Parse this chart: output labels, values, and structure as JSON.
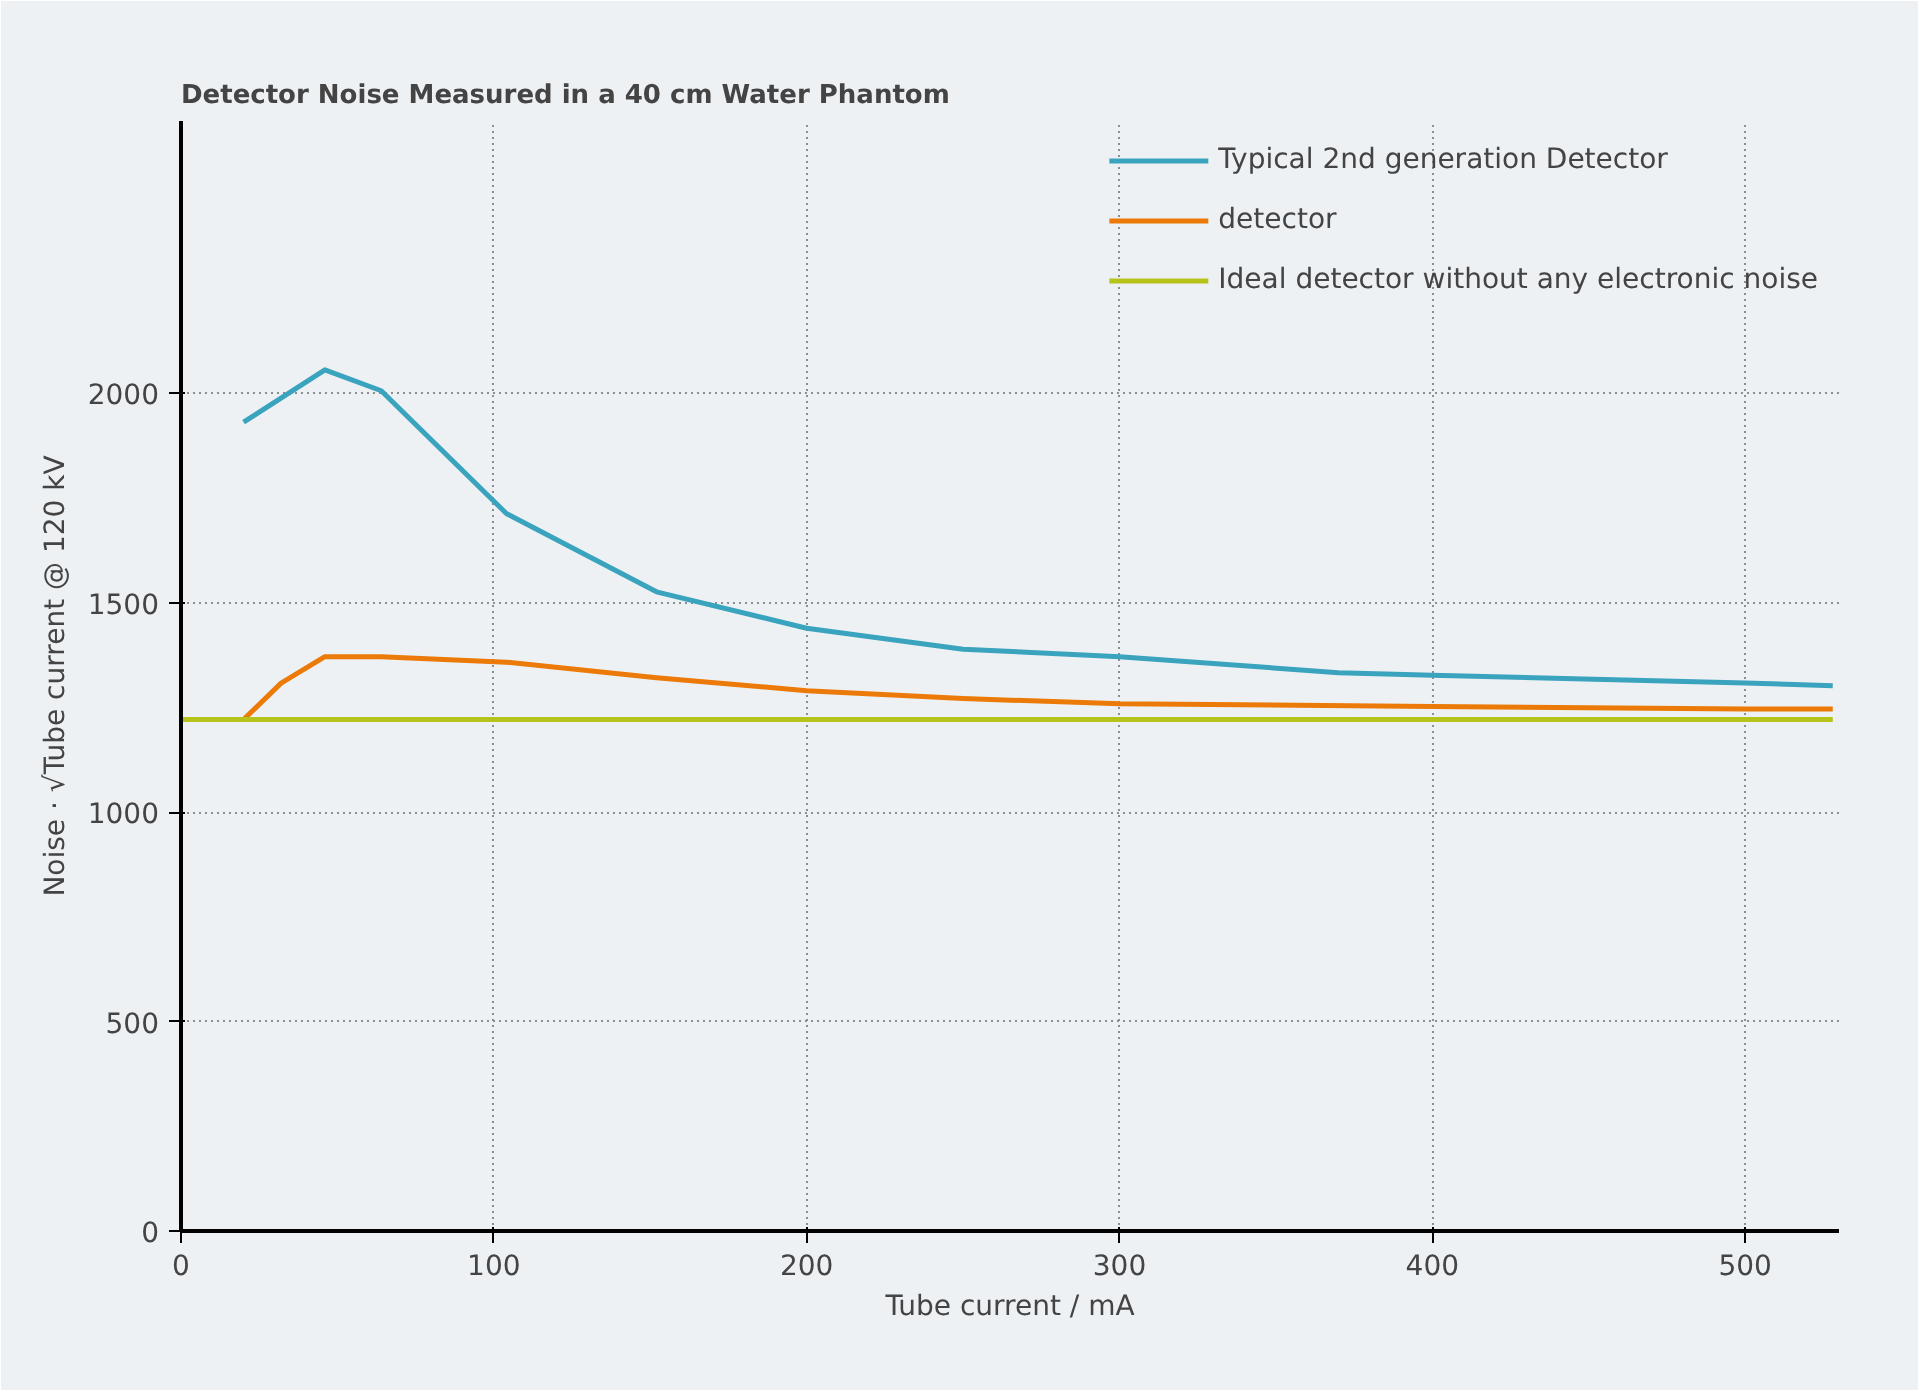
{
  "chart_data": {
    "type": "line",
    "title": "Detector Noise Measured in a 40 cm Water Phantom",
    "xlabel": "Tube current / mA",
    "ylabel": "Noise · √Tube current @ 120 kV",
    "xlim": [
      0,
      530
    ],
    "ylim": [
      0,
      2650
    ],
    "xticks": [
      0,
      100,
      200,
      300,
      400,
      500
    ],
    "yticks": [
      0,
      500,
      1000,
      1500,
      2000
    ],
    "grid": true,
    "legend": "top right",
    "series": [
      {
        "name": "Typical 2nd generation Detector",
        "color": "#3aa3bd",
        "x": [
          20,
          46,
          64,
          104,
          152,
          200,
          250,
          300,
          370,
          400,
          500,
          528
        ],
        "values": [
          1931,
          2056,
          2006,
          1713,
          1526,
          1439,
          1389,
          1371,
          1333,
          1327,
          1308,
          1302
        ]
      },
      {
        "name": "detector",
        "color": "#ec7a08",
        "x": [
          20,
          32,
          46,
          64,
          104,
          152,
          200,
          250,
          300,
          400,
          500,
          528
        ],
        "values": [
          1221,
          1308,
          1371,
          1371,
          1358,
          1321,
          1290,
          1271,
          1259,
          1252,
          1246,
          1246
        ]
      },
      {
        "name": "Ideal detector without any electronic noise",
        "color": "#b5c31a",
        "x": [
          0,
          528
        ],
        "values": [
          1221,
          1221
        ]
      }
    ]
  }
}
